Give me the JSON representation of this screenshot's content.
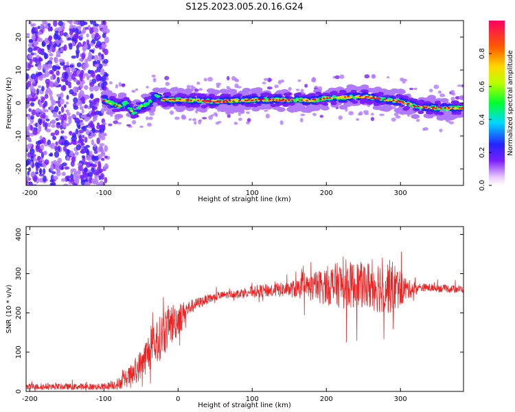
{
  "title": "S125.2023.005.20.16.G24",
  "colors": {
    "snr_line": "#ee2222",
    "axis": "#000000",
    "background": "#ffffff"
  },
  "colorbar": {
    "label": "Normalized spectral amplitude",
    "ticks": [
      "0.0",
      "0.2",
      "0.4",
      "0.6",
      "0.8"
    ],
    "range": [
      0.0,
      1.0
    ]
  },
  "chart_data": [
    {
      "type": "heatmap",
      "name": "spectrogram",
      "xlabel": "Height of straight line (km)",
      "ylabel": "Frequency (Hz)",
      "xlim": [
        -205,
        385
      ],
      "ylim": [
        -25,
        25
      ],
      "xticks": [
        -200,
        -100,
        0,
        100,
        200,
        300
      ],
      "yticks": [
        -20,
        -10,
        0,
        10,
        20
      ],
      "grid": false,
      "ridge": {
        "description_x": [
          -100,
          -90,
          -80,
          -70,
          -60,
          -50,
          -40,
          -30,
          -20,
          0,
          50,
          100,
          150,
          180,
          200,
          250,
          280,
          300,
          320,
          350,
          385
        ],
        "frequency_hz": [
          1,
          0,
          -1,
          0,
          -3,
          -1,
          0,
          2,
          1,
          1,
          0.5,
          1,
          1,
          0.8,
          1.5,
          2,
          1,
          0.5,
          -1,
          -1.5,
          -1.5
        ]
      }
    },
    {
      "type": "line",
      "name": "snr",
      "xlabel": "Height of straight line (km)",
      "ylabel": "SNR (10 * v/v)",
      "xlim": [
        -205,
        385
      ],
      "ylim": [
        0,
        420
      ],
      "xticks": [
        -200,
        -100,
        0,
        100,
        200,
        300
      ],
      "yticks": [
        0,
        100,
        200,
        300,
        400
      ],
      "grid": false,
      "series": [
        {
          "x": [
            -205,
            -150,
            -100,
            -80,
            -60,
            -50,
            -40,
            -30,
            -20,
            -10,
            0,
            10,
            20,
            40,
            60,
            80,
            100,
            150,
            180,
            200,
            220,
            250,
            270,
            290,
            310,
            330,
            360,
            385
          ],
          "y": [
            12,
            12,
            12,
            20,
            45,
            70,
            100,
            120,
            150,
            170,
            185,
            205,
            220,
            235,
            245,
            250,
            255,
            260,
            265,
            270,
            272,
            270,
            270,
            265,
            260,
            265,
            262,
            260
          ],
          "noise_amplitude": [
            8,
            8,
            8,
            15,
            30,
            40,
            50,
            55,
            60,
            55,
            45,
            25,
            15,
            12,
            10,
            10,
            15,
            20,
            35,
            50,
            60,
            60,
            70,
            70,
            25,
            10,
            10,
            10
          ]
        }
      ]
    }
  ]
}
